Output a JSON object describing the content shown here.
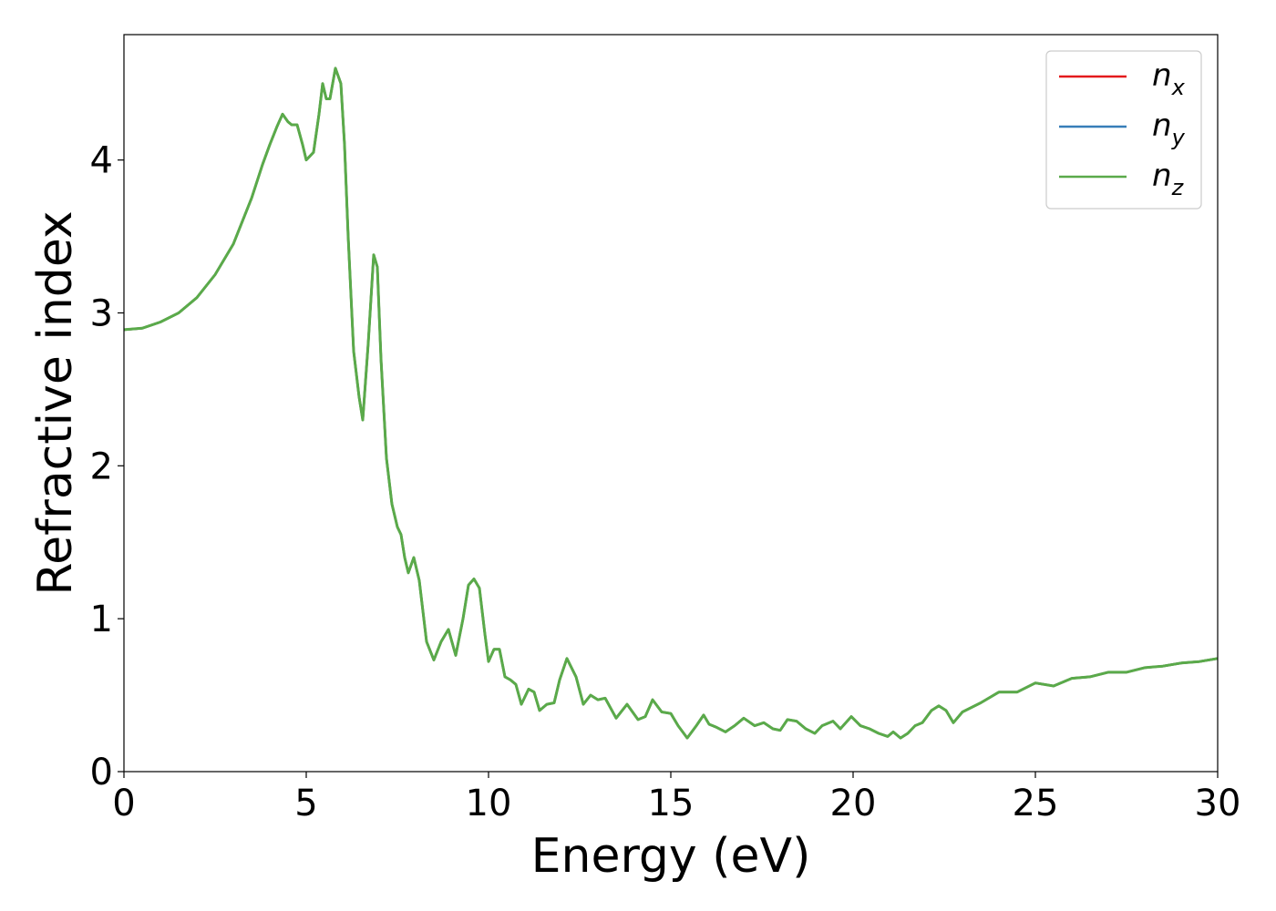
{
  "chart_data": {
    "type": "line",
    "xlabel": "Energy (eV)",
    "ylabel": "Refractive index",
    "xlim": [
      0,
      30
    ],
    "ylim": [
      0,
      4.82
    ],
    "xticks": [
      "0",
      "5",
      "10",
      "15",
      "20",
      "25",
      "30"
    ],
    "yticks": [
      "0",
      "1",
      "2",
      "3",
      "4"
    ],
    "grid": false,
    "legend_position": "top-right",
    "series": [
      {
        "name": "n",
        "subscript": "x",
        "color": "#e41a1c"
      },
      {
        "name": "n",
        "subscript": "y",
        "color": "#377eb8"
      },
      {
        "name": "n",
        "subscript": "z",
        "color": "#5aaa4a"
      }
    ],
    "shared_curve": {
      "x": [
        0,
        0.5,
        1,
        1.5,
        2,
        2.5,
        3,
        3.5,
        3.8,
        4.0,
        4.2,
        4.35,
        4.5,
        4.6,
        4.75,
        4.9,
        5.0,
        5.2,
        5.35,
        5.45,
        5.55,
        5.65,
        5.8,
        5.95,
        6.05,
        6.15,
        6.3,
        6.45,
        6.55,
        6.7,
        6.85,
        6.95,
        7.05,
        7.2,
        7.35,
        7.5,
        7.6,
        7.7,
        7.8,
        7.95,
        8.1,
        8.3,
        8.5,
        8.7,
        8.9,
        9.1,
        9.3,
        9.45,
        9.6,
        9.75,
        9.9,
        10.0,
        10.15,
        10.3,
        10.45,
        10.6,
        10.75,
        10.9,
        11.1,
        11.25,
        11.4,
        11.6,
        11.8,
        11.95,
        12.15,
        12.4,
        12.6,
        12.8,
        13.0,
        13.2,
        13.5,
        13.8,
        14.1,
        14.3,
        14.5,
        14.75,
        15.0,
        15.2,
        15.45,
        15.7,
        15.9,
        16.05,
        16.25,
        16.5,
        16.75,
        17.0,
        17.3,
        17.55,
        17.8,
        18.0,
        18.2,
        18.45,
        18.7,
        18.95,
        19.15,
        19.45,
        19.65,
        19.95,
        20.2,
        20.45,
        20.7,
        20.95,
        21.1,
        21.3,
        21.5,
        21.7,
        21.9,
        22.15,
        22.35,
        22.55,
        22.75,
        23.0,
        23.5,
        24.0,
        24.5,
        25.0,
        25.5,
        26.0,
        26.5,
        27.0,
        27.5,
        28.0,
        28.5,
        29.0,
        29.5,
        30.0
      ],
      "y": [
        2.89,
        2.9,
        2.94,
        3.0,
        3.1,
        3.25,
        3.45,
        3.75,
        3.97,
        4.1,
        4.22,
        4.3,
        4.25,
        4.23,
        4.23,
        4.1,
        4.0,
        4.05,
        4.3,
        4.5,
        4.4,
        4.4,
        4.6,
        4.5,
        4.1,
        3.5,
        2.75,
        2.45,
        2.3,
        2.8,
        3.38,
        3.3,
        2.7,
        2.05,
        1.75,
        1.6,
        1.55,
        1.4,
        1.3,
        1.4,
        1.25,
        0.85,
        0.73,
        0.85,
        0.93,
        0.76,
        1.0,
        1.22,
        1.26,
        1.2,
        0.9,
        0.72,
        0.8,
        0.8,
        0.62,
        0.6,
        0.57,
        0.44,
        0.54,
        0.52,
        0.4,
        0.44,
        0.45,
        0.6,
        0.74,
        0.62,
        0.44,
        0.5,
        0.47,
        0.48,
        0.35,
        0.44,
        0.34,
        0.36,
        0.47,
        0.39,
        0.38,
        0.3,
        0.22,
        0.3,
        0.37,
        0.31,
        0.29,
        0.26,
        0.3,
        0.35,
        0.3,
        0.32,
        0.28,
        0.27,
        0.34,
        0.33,
        0.28,
        0.25,
        0.3,
        0.33,
        0.28,
        0.36,
        0.3,
        0.28,
        0.25,
        0.23,
        0.26,
        0.22,
        0.25,
        0.3,
        0.32,
        0.4,
        0.43,
        0.4,
        0.32,
        0.39,
        0.45,
        0.52,
        0.52,
        0.58,
        0.56,
        0.61,
        0.62,
        0.65,
        0.65,
        0.68,
        0.69,
        0.71,
        0.72,
        0.74
      ]
    }
  }
}
